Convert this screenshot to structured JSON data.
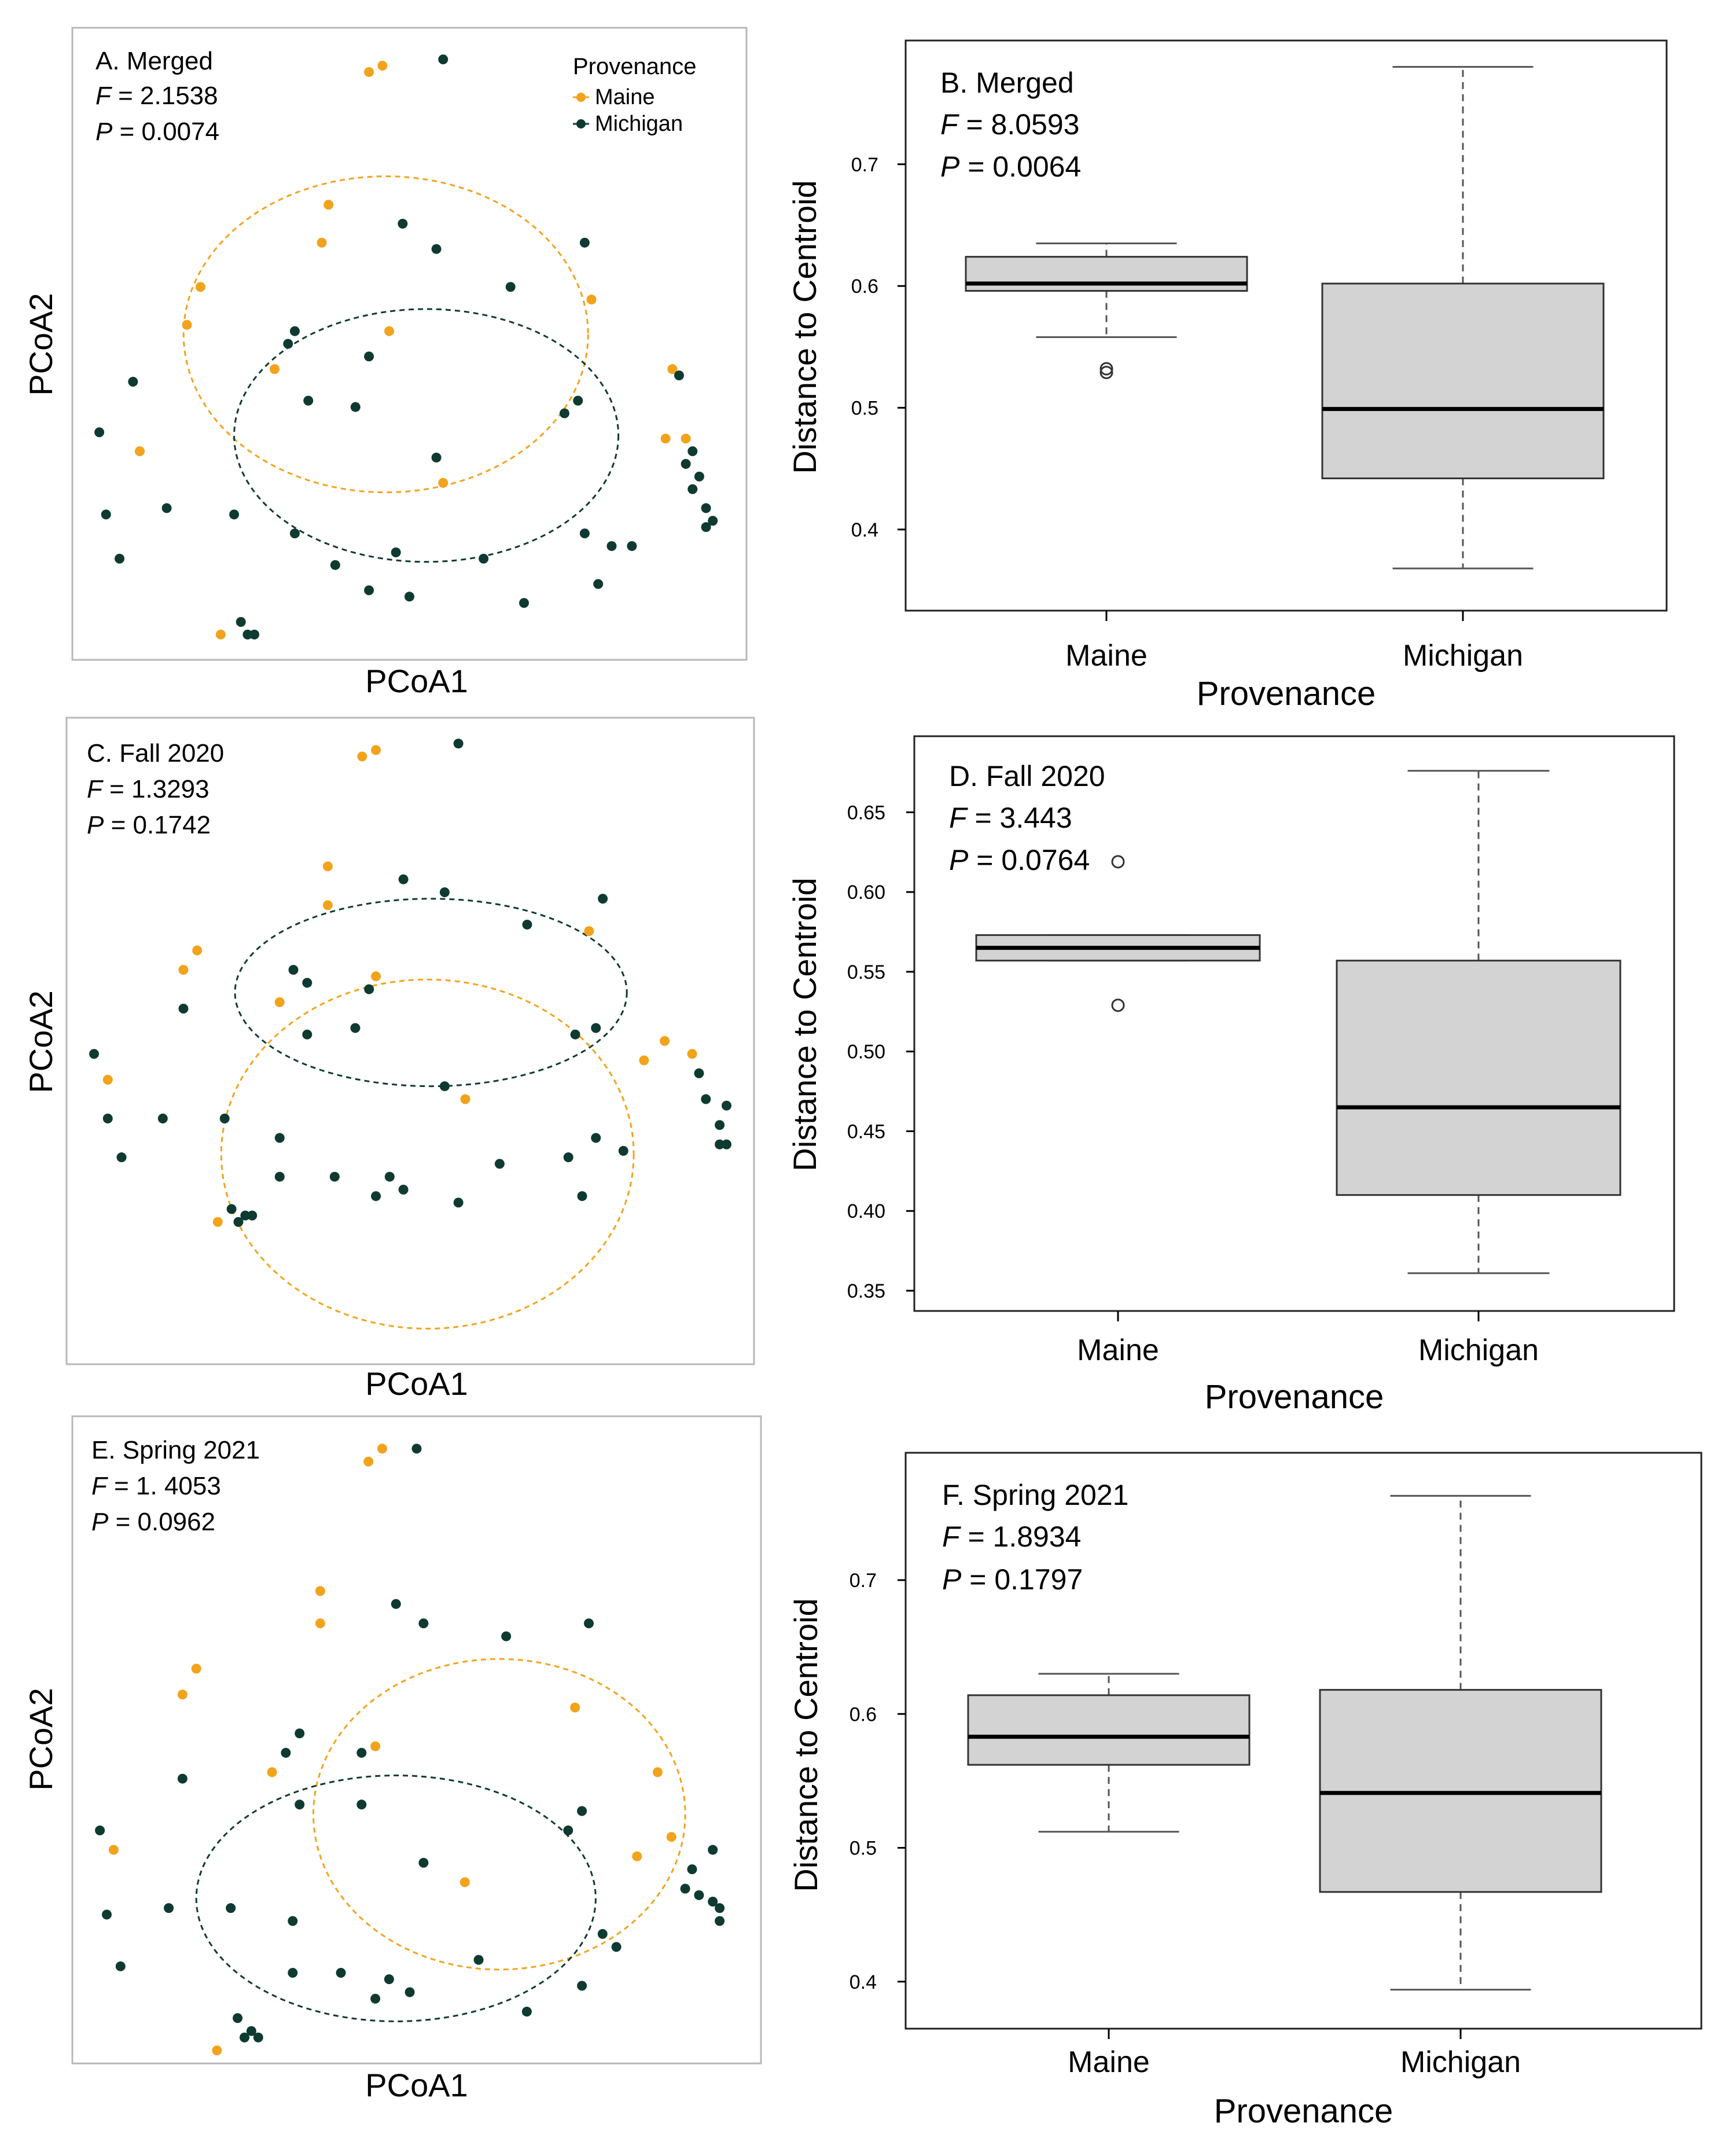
{
  "colors": {
    "maine": "#f2a31c",
    "michigan": "#0f3a32",
    "box_fill": "#d3d3d3",
    "frame": "#b8b8b8",
    "axis": "#000000"
  },
  "chart_data": [
    {
      "id": "A",
      "type": "scatter",
      "title": "A. Merged",
      "f_text": "F",
      "f_value": "= 2.1538",
      "p_text": "P",
      "p_value": "= 0.0074",
      "xlabel": "PCoA1",
      "ylabel": "PCoA2",
      "xlim": [
        0,
        100
      ],
      "ylim": [
        0,
        100
      ],
      "legend": {
        "title": "Provenance",
        "items": [
          "Maine",
          "Michigan"
        ],
        "position": "top-right"
      },
      "ellipses": [
        {
          "group": "Maine",
          "cx": 46.5,
          "cy": 51.5,
          "rx": 30.0,
          "ry": 25.0
        },
        {
          "group": "Michigan",
          "cx": 52.5,
          "cy": 35.5,
          "rx": 28.5,
          "ry": 20.0
        }
      ],
      "series": [
        {
          "name": "Maine",
          "points": [
            [
              44,
              93
            ],
            [
              46,
              94
            ],
            [
              38,
              72
            ],
            [
              37,
              66
            ],
            [
              19,
              59
            ],
            [
              17,
              53
            ],
            [
              10,
              33
            ],
            [
              30,
              46
            ],
            [
              47,
              52
            ],
            [
              55,
              28
            ],
            [
              77,
              57
            ],
            [
              89,
              46
            ],
            [
              88,
              35
            ],
            [
              91,
              35
            ],
            [
              22,
              4
            ]
          ]
        },
        {
          "name": "Michigan",
          "points": [
            [
              55,
              95
            ],
            [
              49,
              69
            ],
            [
              54,
              65
            ],
            [
              65,
              59
            ],
            [
              76,
              66
            ],
            [
              33,
              52
            ],
            [
              32,
              50
            ],
            [
              44,
              48
            ],
            [
              42,
              40
            ],
            [
              35,
              41
            ],
            [
              9,
              44
            ],
            [
              54,
              32
            ],
            [
              4,
              36
            ],
            [
              5,
              23
            ],
            [
              7,
              16
            ],
            [
              14,
              24
            ],
            [
              24,
              23
            ],
            [
              33,
              20
            ],
            [
              39,
              15
            ],
            [
              48,
              17
            ],
            [
              44,
              11
            ],
            [
              50,
              10
            ],
            [
              61,
              16
            ],
            [
              67,
              9
            ],
            [
              76,
              20
            ],
            [
              78,
              12
            ],
            [
              80,
              18
            ],
            [
              83,
              18
            ],
            [
              73,
              39
            ],
            [
              75,
              41
            ],
            [
              90,
              45
            ],
            [
              91,
              31
            ],
            [
              92,
              33
            ],
            [
              92,
              27
            ],
            [
              93,
              29
            ],
            [
              94,
              24
            ],
            [
              94,
              21
            ],
            [
              95,
              22
            ],
            [
              25,
              6
            ],
            [
              26,
              4
            ],
            [
              27,
              4
            ]
          ]
        }
      ]
    },
    {
      "id": "B",
      "type": "box",
      "title": "B. Merged",
      "f_text": "F",
      "f_value": "= 8.0593",
      "p_text": "P",
      "p_value": "= 0.0064",
      "xlabel": "Provenance",
      "ylabel": "Distance to Centroid",
      "ylim": [
        0.35,
        0.785
      ],
      "yticks": [
        0.4,
        0.5,
        0.6,
        0.7
      ],
      "ytick_labels": [
        "0.4",
        "0.5",
        "0.6",
        "0.7"
      ],
      "categories": [
        "Maine",
        "Michigan"
      ],
      "boxes": [
        {
          "name": "Maine",
          "whisker_low": 0.558,
          "q1": 0.596,
          "median": 0.602,
          "q3": 0.624,
          "whisker_high": 0.635,
          "outliers": [
            0.529,
            0.532
          ]
        },
        {
          "name": "Michigan",
          "whisker_low": 0.368,
          "q1": 0.442,
          "median": 0.499,
          "q3": 0.602,
          "whisker_high": 0.78,
          "outliers": []
        }
      ]
    },
    {
      "id": "C",
      "type": "scatter",
      "title": "C. Fall 2020",
      "f_text": "F",
      "f_value": "= 1.3293",
      "p_text": "P",
      "p_value": "= 0.1742",
      "xlabel": "PCoA1",
      "ylabel": "PCoA2",
      "xlim": [
        0,
        100
      ],
      "ylim": [
        0,
        100
      ],
      "ellipses": [
        {
          "group": "Michigan",
          "cx": 53.0,
          "cy": 57.5,
          "rx": 28.5,
          "ry": 14.5
        },
        {
          "group": "Maine",
          "cx": 52.5,
          "cy": 32.5,
          "rx": 30.0,
          "ry": 27.0
        }
      ],
      "series": [
        {
          "name": "Maine",
          "points": [
            [
              43,
              94
            ],
            [
              45,
              95
            ],
            [
              38,
              77
            ],
            [
              38,
              71
            ],
            [
              19,
              64
            ],
            [
              17,
              61
            ],
            [
              31,
              56
            ],
            [
              45,
              60
            ],
            [
              76,
              67
            ],
            [
              58,
              41
            ],
            [
              84,
              47
            ],
            [
              87,
              50
            ],
            [
              91,
              48
            ],
            [
              6,
              44
            ],
            [
              22,
              22
            ]
          ]
        },
        {
          "name": "Michigan",
          "points": [
            [
              57,
              96
            ],
            [
              49,
              75
            ],
            [
              55,
              73
            ],
            [
              67,
              68
            ],
            [
              78,
              72
            ],
            [
              33,
              61
            ],
            [
              35,
              59
            ],
            [
              44,
              58
            ],
            [
              42,
              52
            ],
            [
              35,
              51
            ],
            [
              17,
              55
            ],
            [
              55,
              43
            ],
            [
              4,
              48
            ],
            [
              6,
              38
            ],
            [
              8,
              32
            ],
            [
              14,
              38
            ],
            [
              23,
              38
            ],
            [
              31,
              35
            ],
            [
              31,
              29
            ],
            [
              39,
              29
            ],
            [
              47,
              29
            ],
            [
              45,
              26
            ],
            [
              49,
              27
            ],
            [
              57,
              25
            ],
            [
              63,
              31
            ],
            [
              73,
              32
            ],
            [
              75,
              26
            ],
            [
              77,
              35
            ],
            [
              81,
              33
            ],
            [
              74,
              51
            ],
            [
              77,
              52
            ],
            [
              92,
              45
            ],
            [
              93,
              41
            ],
            [
              96,
              40
            ],
            [
              95,
              37
            ],
            [
              95,
              34
            ],
            [
              96,
              34
            ],
            [
              24,
              24
            ],
            [
              26,
              23
            ],
            [
              25,
              22
            ],
            [
              27,
              23
            ]
          ]
        }
      ]
    },
    {
      "id": "D",
      "type": "box",
      "title": "D. Fall 2020",
      "f_text": "F",
      "f_value": "= 3.443",
      "p_text": "P",
      "p_value": "= 0.0764",
      "xlabel": "Provenance",
      "ylabel": "Distance to Centroid",
      "ylim": [
        0.35,
        0.685
      ],
      "yticks": [
        0.35,
        0.4,
        0.45,
        0.5,
        0.55,
        0.6,
        0.65
      ],
      "ytick_labels": [
        "0.35",
        "0.40",
        "0.45",
        "0.50",
        "0.55",
        "0.60",
        "0.65"
      ],
      "categories": [
        "Maine",
        "Michigan"
      ],
      "boxes": [
        {
          "name": "Maine",
          "whisker_low": 0.557,
          "q1": 0.557,
          "median": 0.565,
          "q3": 0.573,
          "whisker_high": 0.573,
          "outliers": [
            0.529,
            0.619
          ]
        },
        {
          "name": "Michigan",
          "whisker_low": 0.361,
          "q1": 0.41,
          "median": 0.465,
          "q3": 0.557,
          "whisker_high": 0.676,
          "outliers": []
        }
      ]
    },
    {
      "id": "E",
      "type": "scatter",
      "title": "E. Spring 2021",
      "f_text": "F",
      "f_value": "= 1. 4053",
      "p_text": "P",
      "p_value": "= 0.0962",
      "xlabel": "PCoA1",
      "ylabel": "PCoA2",
      "xlim": [
        0,
        100
      ],
      "ylim": [
        0,
        100
      ],
      "ellipses": [
        {
          "group": "Maine",
          "cx": 62.0,
          "cy": 38.5,
          "rx": 27.0,
          "ry": 24.0
        },
        {
          "group": "Michigan",
          "cx": 47.0,
          "cy": 25.5,
          "rx": 29.0,
          "ry": 19.0
        }
      ],
      "series": [
        {
          "name": "Maine",
          "points": [
            [
              43,
              93
            ],
            [
              45,
              95
            ],
            [
              36,
              73
            ],
            [
              36,
              68
            ],
            [
              18,
              61
            ],
            [
              16,
              57
            ],
            [
              29,
              45
            ],
            [
              44,
              49
            ],
            [
              73,
              55
            ],
            [
              57,
              28
            ],
            [
              82,
              32
            ],
            [
              85,
              45
            ],
            [
              87,
              35
            ],
            [
              6,
              33
            ],
            [
              21,
              2
            ]
          ]
        },
        {
          "name": "Michigan",
          "points": [
            [
              50,
              95
            ],
            [
              47,
              71
            ],
            [
              51,
              68
            ],
            [
              63,
              66
            ],
            [
              75,
              68
            ],
            [
              33,
              51
            ],
            [
              31,
              48
            ],
            [
              42,
              48
            ],
            [
              42,
              40
            ],
            [
              33,
              40
            ],
            [
              16,
              44
            ],
            [
              51,
              31
            ],
            [
              4,
              36
            ],
            [
              5,
              23
            ],
            [
              7,
              15
            ],
            [
              14,
              24
            ],
            [
              23,
              24
            ],
            [
              32,
              22
            ],
            [
              32,
              14
            ],
            [
              39,
              14
            ],
            [
              46,
              13
            ],
            [
              44,
              10
            ],
            [
              49,
              11
            ],
            [
              59,
              16
            ],
            [
              66,
              8
            ],
            [
              74,
              12
            ],
            [
              77,
              20
            ],
            [
              79,
              18
            ],
            [
              72,
              36
            ],
            [
              74,
              39
            ],
            [
              90,
              30
            ],
            [
              89,
              27
            ],
            [
              91,
              26
            ],
            [
              93,
              33
            ],
            [
              93,
              25
            ],
            [
              94,
              24
            ],
            [
              94,
              22
            ],
            [
              24,
              7
            ],
            [
              26,
              5
            ],
            [
              25,
              4
            ],
            [
              27,
              4
            ]
          ]
        }
      ]
    },
    {
      "id": "F",
      "type": "box",
      "title": "F. Spring 2021",
      "f_text": "F",
      "f_value": "= 1.8934",
      "p_text": "P",
      "p_value": "= 0.1797",
      "xlabel": "Provenance",
      "ylabel": "Distance to Centroid",
      "ylim": [
        0.38,
        0.78
      ],
      "yticks": [
        0.4,
        0.5,
        0.6,
        0.7
      ],
      "ytick_labels": [
        "0.4",
        "0.5",
        "0.6",
        "0.7"
      ],
      "categories": [
        "Maine",
        "Michigan"
      ],
      "boxes": [
        {
          "name": "Maine",
          "whisker_low": 0.512,
          "q1": 0.562,
          "median": 0.583,
          "q3": 0.614,
          "whisker_high": 0.63,
          "outliers": []
        },
        {
          "name": "Michigan",
          "whisker_low": 0.394,
          "q1": 0.467,
          "median": 0.541,
          "q3": 0.618,
          "whisker_high": 0.763,
          "outliers": []
        }
      ]
    }
  ]
}
